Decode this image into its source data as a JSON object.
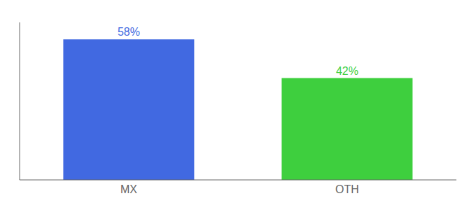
{
  "chart_data": {
    "type": "bar",
    "categories": [
      "MX",
      "OTH"
    ],
    "values": [
      58,
      42
    ],
    "value_labels": [
      "58%",
      "42%"
    ],
    "colors": [
      "#4169e1",
      "#3ecf3e"
    ],
    "ylim": [
      0,
      65
    ],
    "data_labels": true,
    "tick_labels": "x"
  }
}
